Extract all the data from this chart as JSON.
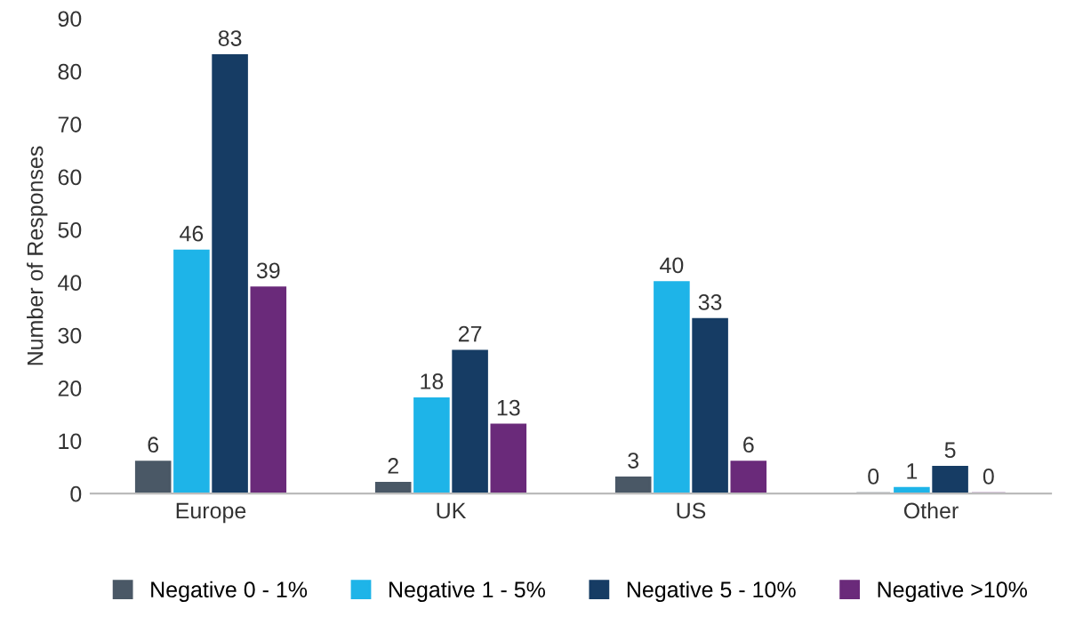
{
  "chart_data": {
    "type": "bar",
    "ylabel": "Number of Responses",
    "categories": [
      "Europe",
      "UK",
      "US",
      "Other"
    ],
    "series": [
      {
        "name": "Negative 0 - 1%",
        "color": "#4a5866",
        "values": [
          6,
          2,
          3,
          0
        ]
      },
      {
        "name": "Negative 1 - 5%",
        "color": "#1eb4e8",
        "values": [
          46,
          18,
          40,
          1
        ]
      },
      {
        "name": "Negative 5 - 10%",
        "color": "#163c64",
        "values": [
          83,
          27,
          33,
          5
        ]
      },
      {
        "name": "Negative >10%",
        "color": "#6a2a7a",
        "values": [
          39,
          13,
          6,
          0
        ]
      }
    ],
    "ylim": [
      0,
      90
    ],
    "yticks": [
      0,
      10,
      20,
      30,
      40,
      50,
      60,
      70,
      80,
      90
    ],
    "grid": false,
    "legend": "bottom",
    "data_labels": true
  }
}
